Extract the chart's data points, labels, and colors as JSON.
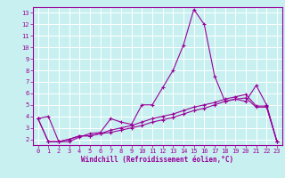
{
  "title": "",
  "xlabel": "Windchill (Refroidissement éolien,°C)",
  "ylabel": "",
  "bg_color": "#c8f0f0",
  "line_color": "#990099",
  "grid_color": "#ffffff",
  "xlim": [
    -0.5,
    23.5
  ],
  "ylim": [
    1.5,
    13.5
  ],
  "xticks": [
    0,
    1,
    2,
    3,
    4,
    5,
    6,
    7,
    8,
    9,
    10,
    11,
    12,
    13,
    14,
    15,
    16,
    17,
    18,
    19,
    20,
    21,
    22,
    23
  ],
  "yticks": [
    2,
    3,
    4,
    5,
    6,
    7,
    8,
    9,
    10,
    11,
    12,
    13
  ],
  "line1_x": [
    0,
    1,
    2,
    3,
    4,
    5,
    6,
    7,
    8,
    9,
    10,
    11,
    12,
    13,
    14,
    15,
    16,
    17,
    18,
    19,
    20,
    21,
    22,
    23
  ],
  "line1_y": [
    3.8,
    4.0,
    1.8,
    1.8,
    2.2,
    2.5,
    2.6,
    3.8,
    3.5,
    3.3,
    5.0,
    5.0,
    6.5,
    8.0,
    10.2,
    13.3,
    12.0,
    7.5,
    5.3,
    5.5,
    5.3,
    6.7,
    5.0,
    1.8
  ],
  "line2_x": [
    0,
    1,
    2,
    3,
    4,
    5,
    6,
    7,
    8,
    9,
    10,
    11,
    12,
    13,
    14,
    15,
    16,
    17,
    18,
    19,
    20,
    21,
    22,
    23
  ],
  "line2_y": [
    3.8,
    1.8,
    1.8,
    2.0,
    2.3,
    2.3,
    2.5,
    2.8,
    3.0,
    3.2,
    3.5,
    3.8,
    4.0,
    4.2,
    4.5,
    4.8,
    5.0,
    5.2,
    5.5,
    5.7,
    5.9,
    4.9,
    4.9,
    1.8
  ],
  "line3_x": [
    0,
    1,
    2,
    3,
    4,
    5,
    6,
    7,
    8,
    9,
    10,
    11,
    12,
    13,
    14,
    15,
    16,
    17,
    18,
    19,
    20,
    21,
    22,
    23
  ],
  "line3_y": [
    3.8,
    1.8,
    1.8,
    2.0,
    2.3,
    2.3,
    2.5,
    2.6,
    2.8,
    3.0,
    3.2,
    3.5,
    3.7,
    3.9,
    4.2,
    4.5,
    4.7,
    5.0,
    5.3,
    5.5,
    5.6,
    4.8,
    4.8,
    1.8
  ],
  "marker": "+",
  "markersize": 3,
  "linewidth": 0.8
}
